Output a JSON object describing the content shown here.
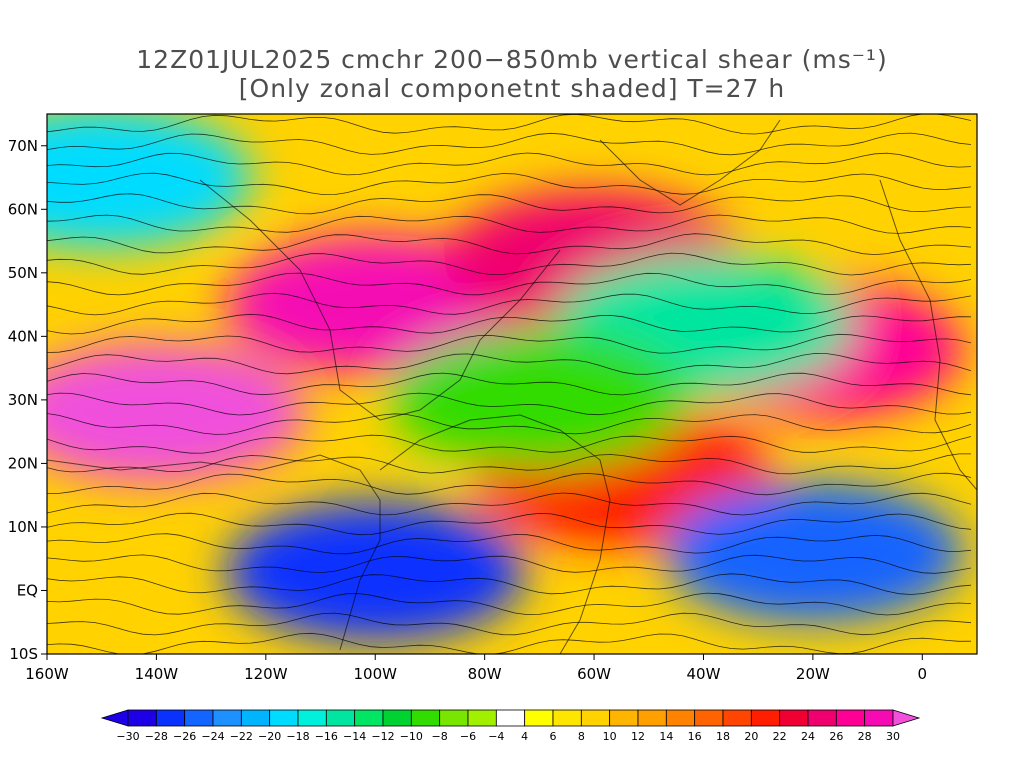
{
  "title": {
    "line1": "12Z01JUL2025 cmchr 200−850mb vertical shear (ms⁻¹)",
    "line2": "[Only zonal componetnt shaded] T=27 h"
  },
  "map": {
    "lon_range": [
      -160,
      10
    ],
    "lat_range": [
      -10,
      75
    ],
    "lat_labels": [
      "10S",
      "EQ",
      "10N",
      "20N",
      "30N",
      "40N",
      "50N",
      "60N",
      "70N"
    ],
    "lat_values": [
      -10,
      0,
      10,
      20,
      30,
      40,
      50,
      60,
      70
    ],
    "lon_labels": [
      "160W",
      "140W",
      "120W",
      "100W",
      "80W",
      "60W",
      "40W",
      "20W",
      "0"
    ],
    "lon_values": [
      -160,
      -140,
      -120,
      -100,
      -80,
      -60,
      -40,
      -20,
      0
    ],
    "shaded_field": "zonal component of 200-850mb vertical shear",
    "shear_regions": [
      {
        "lon": -140,
        "lat": 28,
        "u": 30
      },
      {
        "lon": -100,
        "lat": 45,
        "u": 28
      },
      {
        "lon": -60,
        "lat": 52,
        "u": 24
      },
      {
        "lon": -20,
        "lat": 38,
        "u": 26
      },
      {
        "lon": -55,
        "lat": 18,
        "u": 20
      },
      {
        "lon": -100,
        "lat": 3,
        "u": -28
      },
      {
        "lon": -20,
        "lat": 6,
        "u": -26
      },
      {
        "lon": -150,
        "lat": 65,
        "u": -20
      },
      {
        "lon": -40,
        "lat": 42,
        "u": -16
      },
      {
        "lon": -70,
        "lat": 30,
        "u": -10
      }
    ]
  },
  "colorbar": {
    "tick_labels": [
      "−30",
      "−28",
      "−26",
      "−24",
      "−22",
      "−20",
      "−18",
      "−16",
      "−14",
      "−12",
      "−10",
      "−8",
      "−6",
      "−4",
      "4",
      "6",
      "8",
      "10",
      "12",
      "14",
      "16",
      "18",
      "20",
      "22",
      "24",
      "26",
      "28",
      "30"
    ],
    "colors": [
      "#1e00e6",
      "#0a32ff",
      "#1464ff",
      "#1e90ff",
      "#00b4ff",
      "#00dcff",
      "#00f0dc",
      "#00e6a0",
      "#00e664",
      "#00d232",
      "#32dc00",
      "#78e600",
      "#a0f000",
      "#ffffff",
      "#ffff00",
      "#ffe600",
      "#ffd200",
      "#ffb400",
      "#ffa000",
      "#ff8200",
      "#ff6400",
      "#ff4600",
      "#ff1e00",
      "#f00032",
      "#f0006e",
      "#ff0096",
      "#f50ab4"
    ],
    "end_low": "#1e00e6",
    "end_high": "#f050dc"
  }
}
